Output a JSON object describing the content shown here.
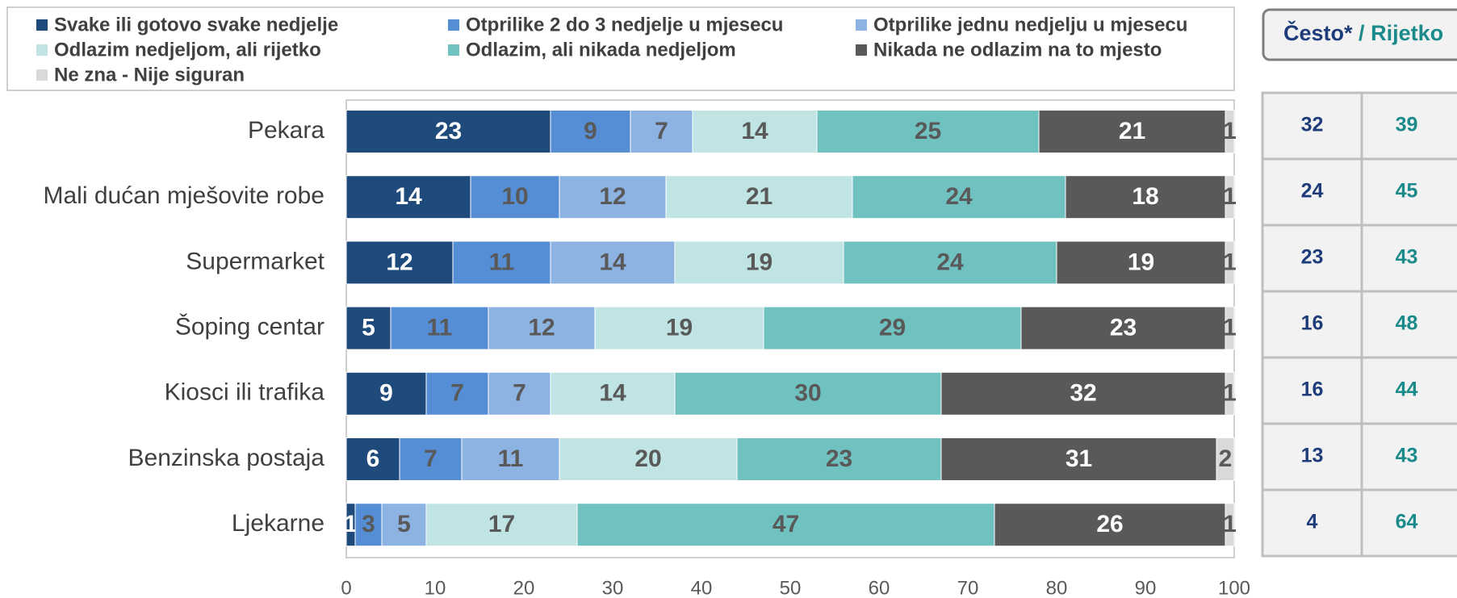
{
  "chart_data": {
    "type": "stacked_barh",
    "categories": [
      "Pekara",
      "Mali dućan mješovite robe",
      "Supermarket",
      "Šoping centar",
      "Kiosci ili trafika",
      "Benzinska postaja",
      "Ljekarne"
    ],
    "series": [
      {
        "name": "Svake ili gotovo svake nedjelje",
        "color": "#1f4a7c",
        "label_color": "#ffffff",
        "values": [
          23,
          14,
          12,
          5,
          9,
          6,
          1
        ]
      },
      {
        "name": "Otprilike 2 do 3 nedjelje u mjesecu",
        "color": "#558ed5",
        "label_color": "#595959",
        "values": [
          9,
          10,
          11,
          11,
          7,
          7,
          3
        ]
      },
      {
        "name": "Otprilike jednu nedjelju u mjesecu",
        "color": "#8db3e2",
        "label_color": "#595959",
        "values": [
          7,
          12,
          14,
          12,
          7,
          11,
          5
        ]
      },
      {
        "name": "Odlazim nedjeljom, ali rijetko",
        "color": "#c0e3e3",
        "label_color": "#595959",
        "values": [
          14,
          21,
          19,
          19,
          14,
          20,
          17
        ]
      },
      {
        "name": "Odlazim, ali nikada nedjeljom",
        "color": "#70c2c0",
        "label_color": "#595959",
        "values": [
          25,
          24,
          24,
          29,
          30,
          23,
          47
        ]
      },
      {
        "name": "Nikada ne odlazim na to mjesto",
        "color": "#595959",
        "label_color": "#ffffff",
        "values": [
          21,
          18,
          19,
          23,
          32,
          31,
          26
        ]
      },
      {
        "name": "Ne zna - Nije siguran",
        "color": "#d9d9d9",
        "label_color": "#595959",
        "values": [
          1,
          1,
          1,
          1,
          1,
          2,
          1
        ]
      }
    ],
    "xlim": [
      0,
      100
    ],
    "xticks": [
      0,
      10,
      20,
      30,
      40,
      50,
      60,
      70,
      80,
      90,
      100
    ],
    "grid": false,
    "legend": "top"
  },
  "table": {
    "often_label": "Često*",
    "separator": "/",
    "rarely_label": "Rijetko",
    "often": [
      32,
      24,
      23,
      16,
      16,
      13,
      4
    ],
    "rarely": [
      39,
      45,
      43,
      48,
      44,
      43,
      64
    ]
  }
}
